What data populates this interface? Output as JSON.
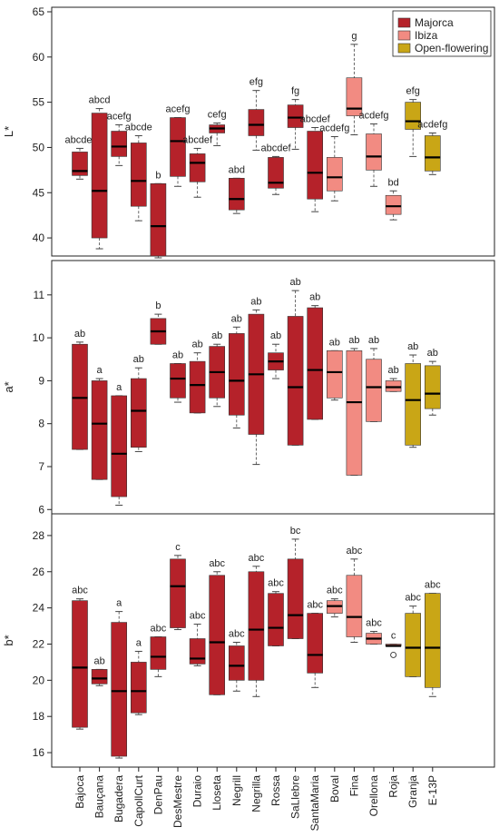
{
  "chart_data": {
    "type": "boxplot",
    "categories": [
      "Bajoca",
      "Bauçana",
      "Bugadera",
      "CapollCurt",
      "DenPau",
      "DesMestre",
      "Duraio",
      "Lloseta",
      "Negrill",
      "Negrilla",
      "Rossa",
      "SaLlebre",
      "SantaMaria",
      "Boval",
      "Fina",
      "Orellona",
      "Roja",
      "Granja",
      "E-13P"
    ],
    "groups": [
      "Majorca",
      "Majorca",
      "Majorca",
      "Majorca",
      "Majorca",
      "Majorca",
      "Majorca",
      "Majorca",
      "Majorca",
      "Majorca",
      "Majorca",
      "Majorca",
      "Majorca",
      "Ibiza",
      "Ibiza",
      "Ibiza",
      "Ibiza",
      "Open-flowering",
      "Open-flowering"
    ],
    "legend": {
      "position": "top-right",
      "entries": [
        {
          "name": "Majorca",
          "color": "#b5222a"
        },
        {
          "name": "Ibiza",
          "color": "#f28b82"
        },
        {
          "name": "Open-flowering",
          "color": "#c9a616"
        }
      ]
    },
    "panels": [
      {
        "ylabel": "L*",
        "ylim": [
          38,
          65.5
        ],
        "yticks": [
          40,
          45,
          50,
          55,
          60,
          65
        ],
        "boxes": [
          {
            "wl": 46.5,
            "q1": 46.9,
            "med": 47.4,
            "q3": 49.5,
            "wh": 49.9
          },
          {
            "wl": 38.8,
            "q1": 40.0,
            "med": 45.2,
            "q3": 53.8,
            "wh": 54.3
          },
          {
            "wl": 48.0,
            "q1": 49.0,
            "med": 50.1,
            "q3": 51.8,
            "wh": 52.5
          },
          {
            "wl": 41.9,
            "q1": 43.5,
            "med": 46.3,
            "q3": 50.5,
            "wh": 51.3
          },
          {
            "wl": 37.8,
            "q1": 38.0,
            "med": 41.3,
            "q3": 46.0,
            "wh": 46.0
          },
          {
            "wl": 45.7,
            "q1": 46.8,
            "med": 50.7,
            "q3": 53.3,
            "wh": 53.3
          },
          {
            "wl": 44.5,
            "q1": 46.2,
            "med": 48.3,
            "q3": 49.3,
            "wh": 49.9
          },
          {
            "wl": 50.2,
            "q1": 51.6,
            "med": 52.1,
            "q3": 52.5,
            "wh": 52.7
          },
          {
            "wl": 42.7,
            "q1": 43.1,
            "med": 44.3,
            "q3": 46.6,
            "wh": 46.6
          },
          {
            "wl": 49.7,
            "q1": 51.3,
            "med": 52.5,
            "q3": 54.2,
            "wh": 56.3
          },
          {
            "wl": 44.8,
            "q1": 45.5,
            "med": 46.1,
            "q3": 48.9,
            "wh": 49.0
          },
          {
            "wl": 49.8,
            "q1": 52.2,
            "med": 53.3,
            "q3": 54.7,
            "wh": 55.3
          },
          {
            "wl": 42.9,
            "q1": 44.3,
            "med": 47.2,
            "q3": 51.8,
            "wh": 52.2
          },
          {
            "wl": 44.1,
            "q1": 45.2,
            "med": 46.7,
            "q3": 48.9,
            "wh": 51.2
          },
          {
            "wl": 51.4,
            "q1": 53.5,
            "med": 54.3,
            "q3": 57.7,
            "wh": 61.4
          },
          {
            "wl": 45.7,
            "q1": 47.5,
            "med": 49.0,
            "q3": 51.5,
            "wh": 52.6
          },
          {
            "wl": 42.0,
            "q1": 42.6,
            "med": 43.5,
            "q3": 44.7,
            "wh": 45.2
          },
          {
            "wl": 49.0,
            "q1": 52.0,
            "med": 52.9,
            "q3": 55.0,
            "wh": 55.3
          },
          {
            "wl": 47.0,
            "q1": 47.4,
            "med": 48.9,
            "q3": 51.3,
            "wh": 51.6
          }
        ],
        "labels": [
          "abcdef",
          "abcd",
          "acefg",
          "abcde",
          "b",
          "acefg",
          "abcdef",
          "cefg",
          "abd",
          "efg",
          "abcdef",
          "fg",
          "abcdef",
          "acdefg",
          "g",
          "acdefg",
          "bd",
          "efg",
          "acdefg"
        ]
      },
      {
        "ylabel": "a*",
        "ylim": [
          5.9,
          11.8
        ],
        "yticks": [
          6,
          7,
          8,
          9,
          10,
          11
        ],
        "boxes": [
          {
            "wl": 7.4,
            "q1": 7.4,
            "med": 8.6,
            "q3": 9.85,
            "wh": 9.9
          },
          {
            "wl": 6.7,
            "q1": 6.7,
            "med": 8.0,
            "q3": 9.0,
            "wh": 9.05
          },
          {
            "wl": 6.1,
            "q1": 6.3,
            "med": 7.3,
            "q3": 8.65,
            "wh": 8.65
          },
          {
            "wl": 7.35,
            "q1": 7.45,
            "med": 8.3,
            "q3": 9.05,
            "wh": 9.3
          },
          {
            "wl": 9.85,
            "q1": 9.85,
            "med": 10.15,
            "q3": 10.45,
            "wh": 10.55
          },
          {
            "wl": 8.5,
            "q1": 8.6,
            "med": 9.05,
            "q3": 9.4,
            "wh": 9.4
          },
          {
            "wl": 8.25,
            "q1": 8.25,
            "med": 8.9,
            "q3": 9.45,
            "wh": 9.65
          },
          {
            "wl": 8.4,
            "q1": 8.6,
            "med": 9.2,
            "q3": 9.8,
            "wh": 9.85
          },
          {
            "wl": 7.9,
            "q1": 8.2,
            "med": 9.0,
            "q3": 10.1,
            "wh": 10.25
          },
          {
            "wl": 7.05,
            "q1": 7.75,
            "med": 9.15,
            "q3": 10.55,
            "wh": 10.65
          },
          {
            "wl": 9.05,
            "q1": 9.25,
            "med": 9.45,
            "q3": 9.65,
            "wh": 9.85
          },
          {
            "wl": 7.5,
            "q1": 7.5,
            "med": 8.85,
            "q3": 10.5,
            "wh": 11.1
          },
          {
            "wl": 8.1,
            "q1": 8.1,
            "med": 9.25,
            "q3": 10.7,
            "wh": 10.75
          },
          {
            "wl": 8.55,
            "q1": 8.6,
            "med": 9.2,
            "q3": 9.7,
            "wh": 9.7
          },
          {
            "wl": 6.8,
            "q1": 6.8,
            "med": 8.5,
            "q3": 9.7,
            "wh": 9.75
          },
          {
            "wl": 8.05,
            "q1": 8.05,
            "med": 8.85,
            "q3": 9.5,
            "wh": 9.75
          },
          {
            "wl": 8.75,
            "q1": 8.75,
            "med": 8.85,
            "q3": 9.0,
            "wh": 9.05
          },
          {
            "wl": 7.45,
            "q1": 7.5,
            "med": 8.55,
            "q3": 9.4,
            "wh": 9.6
          },
          {
            "wl": 8.2,
            "q1": 8.35,
            "med": 8.7,
            "q3": 9.35,
            "wh": 9.45
          }
        ],
        "labels": [
          "ab",
          "a",
          "a",
          "ab",
          "b",
          "ab",
          "ab",
          "ab",
          "ab",
          "ab",
          "ab",
          "ab",
          "ab",
          "ab",
          "ab",
          "ab",
          "ab",
          "ab",
          "ab"
        ]
      },
      {
        "ylabel": "b*",
        "ylim": [
          15.2,
          29.2
        ],
        "yticks": [
          16,
          18,
          20,
          22,
          24,
          26,
          28
        ],
        "boxes": [
          {
            "wl": 17.3,
            "q1": 17.4,
            "med": 20.7,
            "q3": 24.4,
            "wh": 24.5
          },
          {
            "wl": 19.7,
            "q1": 19.8,
            "med": 20.1,
            "q3": 20.6,
            "wh": 20.6
          },
          {
            "wl": 15.7,
            "q1": 15.8,
            "med": 19.4,
            "q3": 23.2,
            "wh": 23.8
          },
          {
            "wl": 18.1,
            "q1": 18.2,
            "med": 19.4,
            "q3": 21.0,
            "wh": 21.6
          },
          {
            "wl": 20.2,
            "q1": 20.6,
            "med": 21.3,
            "q3": 22.4,
            "wh": 22.4
          },
          {
            "wl": 22.8,
            "q1": 22.9,
            "med": 25.2,
            "q3": 26.7,
            "wh": 26.9
          },
          {
            "wl": 20.8,
            "q1": 20.9,
            "med": 21.2,
            "q3": 22.3,
            "wh": 23.1
          },
          {
            "wl": 19.2,
            "q1": 19.2,
            "med": 22.1,
            "q3": 25.8,
            "wh": 26.0
          },
          {
            "wl": 19.4,
            "q1": 20.0,
            "med": 20.8,
            "q3": 21.9,
            "wh": 22.1
          },
          {
            "wl": 19.1,
            "q1": 20.0,
            "med": 22.8,
            "q3": 26.0,
            "wh": 26.3
          },
          {
            "wl": 21.9,
            "q1": 21.9,
            "med": 22.9,
            "q3": 24.8,
            "wh": 24.9
          },
          {
            "wl": 22.3,
            "q1": 22.3,
            "med": 23.6,
            "q3": 26.7,
            "wh": 27.8
          },
          {
            "wl": 19.6,
            "q1": 20.4,
            "med": 21.4,
            "q3": 23.7,
            "wh": 23.7
          },
          {
            "wl": 23.5,
            "q1": 23.7,
            "med": 24.1,
            "q3": 24.4,
            "wh": 24.5
          },
          {
            "wl": 22.1,
            "q1": 22.4,
            "med": 23.5,
            "q3": 25.8,
            "wh": 26.7
          },
          {
            "wl": 22.0,
            "q1": 22.0,
            "med": 22.3,
            "q3": 22.6,
            "wh": 22.7
          },
          {
            "wl": 21.9,
            "q1": 21.9,
            "med": 21.9,
            "q3": 22.0,
            "wh": 22.0,
            "outliers": [
              21.4
            ]
          },
          {
            "wl": 20.2,
            "q1": 20.2,
            "med": 21.8,
            "q3": 23.7,
            "wh": 24.1
          },
          {
            "wl": 19.1,
            "q1": 19.6,
            "med": 21.8,
            "q3": 24.8,
            "wh": 24.8
          }
        ],
        "labels": [
          "abc",
          "ab",
          "a",
          "a",
          "abc",
          "c",
          "abc",
          "abc",
          "abc",
          "abc",
          "abc",
          "bc",
          "abc",
          "abc",
          "abc",
          "abc",
          "c",
          "abc",
          "abc"
        ]
      }
    ]
  }
}
